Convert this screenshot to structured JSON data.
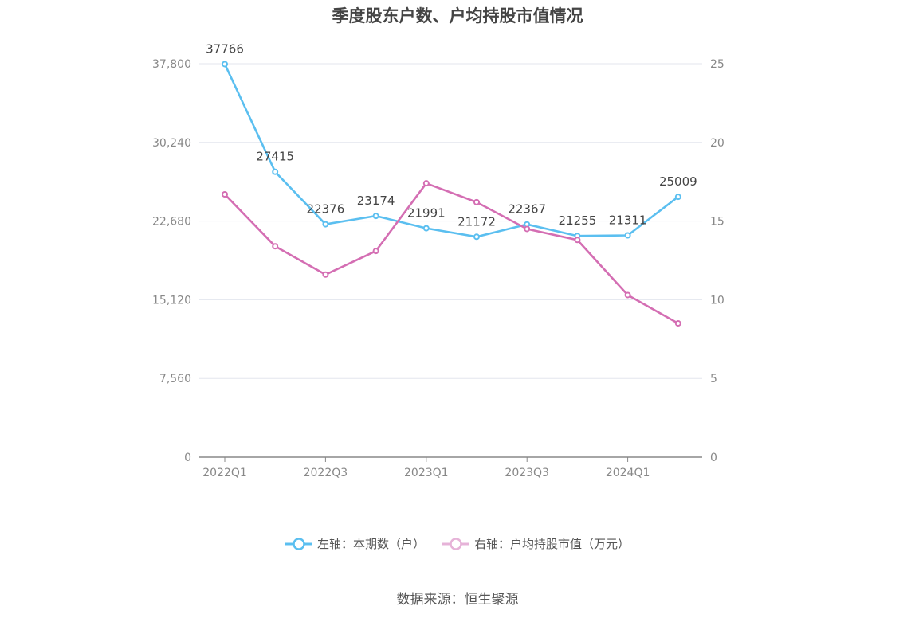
{
  "title": "季度股东户数、户均持股市值情况",
  "source": "数据来源：恒生聚源",
  "colors": {
    "left_series": "#5bbff0",
    "right_series": "#d46eb3",
    "grid": "#e3e6ee",
    "axis": "#888888",
    "tick": "#888888",
    "label": "#444444"
  },
  "chart_data": {
    "type": "line",
    "categories": [
      "2022Q1",
      "2022Q2",
      "2022Q3",
      "2022Q4",
      "2023Q1",
      "2023Q2",
      "2023Q3",
      "2023Q4",
      "2024Q1",
      "2024Q2"
    ],
    "x_tick_labels": [
      "2022Q1",
      "",
      "2022Q3",
      "",
      "2023Q1",
      "",
      "2023Q3",
      "",
      "2024Q1",
      ""
    ],
    "y_left": {
      "ticks": [
        "0",
        "7,560",
        "15,120",
        "22,680",
        "30,240",
        "37,800"
      ],
      "lim": [
        0,
        37800
      ]
    },
    "y_right": {
      "ticks": [
        "0",
        "5",
        "10",
        "15",
        "20",
        "25"
      ],
      "lim": [
        0,
        25
      ]
    },
    "grid": true,
    "legend_position": "bottom",
    "series": [
      {
        "name": "左轴：本期数（户）",
        "axis": "left",
        "values": [
          37766,
          27415,
          22376,
          23174,
          21991,
          21172,
          22367,
          21255,
          21311,
          25009
        ],
        "labels": [
          "37766",
          "27415",
          "22376",
          "23174",
          "21991",
          "21172",
          "22367",
          "21255",
          "21311",
          "25009"
        ]
      },
      {
        "name": "右轴：户均持股市值（万元）",
        "axis": "right",
        "values": [
          16.7,
          13.4,
          11.6,
          13.1,
          17.4,
          16.2,
          14.5,
          13.8,
          10.3,
          8.5
        ]
      }
    ]
  }
}
